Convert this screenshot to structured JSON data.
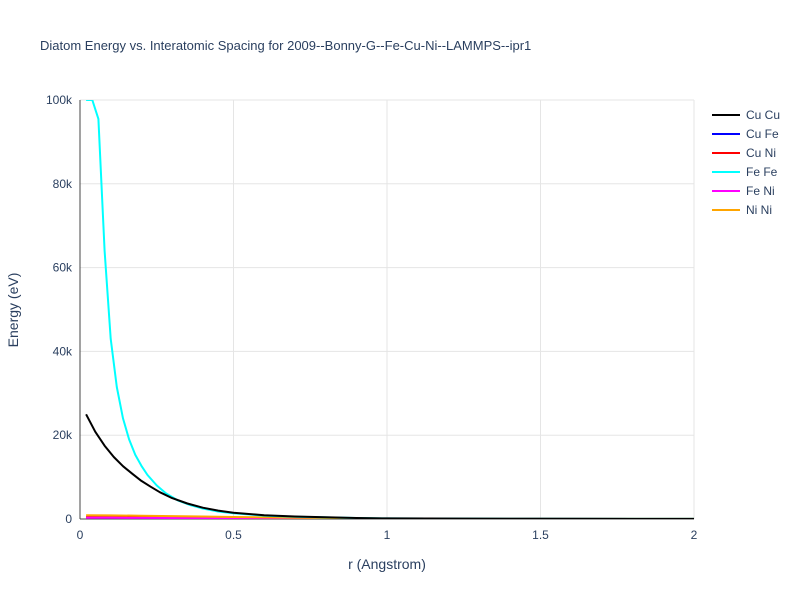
{
  "chart_data": {
    "type": "line",
    "title": "Diatom Energy vs. Interatomic Spacing for 2009--Bonny-G--Fe-Cu-Ni--LAMMPS--ipr1",
    "xlabel": "r (Angstrom)",
    "ylabel": "Energy (eV)",
    "xlim": [
      0,
      2
    ],
    "ylim": [
      0,
      100000
    ],
    "x_ticks": [
      0,
      0.5,
      1,
      1.5,
      2
    ],
    "x_tick_labels": [
      "0",
      "0.5",
      "1",
      "1.5",
      "2"
    ],
    "y_ticks": [
      0,
      20000,
      40000,
      60000,
      80000,
      100000
    ],
    "y_tick_labels": [
      "0",
      "20k",
      "40k",
      "60k",
      "80k",
      "100k"
    ],
    "grid": true,
    "legend_position": "top-right",
    "series": [
      {
        "name": "Cu Cu",
        "color": "#000000",
        "x": [
          0.02,
          0.05,
          0.08,
          0.11,
          0.14,
          0.17,
          0.2,
          0.23,
          0.26,
          0.3,
          0.35,
          0.4,
          0.45,
          0.5,
          0.6,
          0.7,
          0.8,
          0.9,
          1.0,
          1.5,
          2.0
        ],
        "y": [
          25000,
          20800,
          17500,
          14800,
          12600,
          10800,
          9100,
          7700,
          6400,
          5000,
          3700,
          2700,
          2000,
          1500,
          900,
          600,
          400,
          250,
          150,
          50,
          20
        ]
      },
      {
        "name": "Cu Fe",
        "color": "#0000ff",
        "x": [
          0.02,
          0.1,
          0.2,
          0.3,
          0.4,
          0.5,
          0.7,
          1.0,
          1.5,
          2.0
        ],
        "y": [
          400,
          380,
          340,
          290,
          240,
          190,
          120,
          60,
          25,
          10
        ]
      },
      {
        "name": "Cu Ni",
        "color": "#ff0000",
        "x": [
          0.02,
          0.1,
          0.2,
          0.3,
          0.4,
          0.5,
          0.7,
          1.0,
          1.5,
          2.0
        ],
        "y": [
          450,
          420,
          380,
          330,
          270,
          210,
          130,
          65,
          25,
          10
        ]
      },
      {
        "name": "Fe Fe",
        "color": "#00ffff",
        "x": [
          0.02,
          0.04,
          0.06,
          0.08,
          0.1,
          0.12,
          0.14,
          0.16,
          0.18,
          0.2,
          0.22,
          0.25,
          0.28,
          0.32,
          0.36,
          0.4,
          0.45,
          0.5,
          0.6,
          0.7,
          0.8,
          0.9,
          1.0,
          1.5,
          2.0
        ],
        "y": [
          100000,
          100000,
          95500,
          64000,
          43000,
          31500,
          24000,
          19000,
          15300,
          12700,
          10500,
          8000,
          6100,
          4400,
          3300,
          2500,
          1800,
          1350,
          800,
          550,
          380,
          250,
          150,
          50,
          20
        ]
      },
      {
        "name": "Fe Ni",
        "color": "#ff00ff",
        "x": [
          0.02,
          0.1,
          0.2,
          0.3,
          0.4,
          0.5,
          0.7,
          1.0,
          1.5,
          2.0
        ],
        "y": [
          300,
          290,
          270,
          240,
          200,
          160,
          100,
          50,
          20,
          8
        ]
      },
      {
        "name": "Ni Ni",
        "color": "#ffa500",
        "x": [
          0.02,
          0.1,
          0.2,
          0.3,
          0.4,
          0.5,
          0.6,
          0.7,
          0.8,
          0.9,
          1.0,
          1.5,
          2.0
        ],
        "y": [
          900,
          850,
          780,
          700,
          600,
          480,
          380,
          300,
          230,
          170,
          120,
          50,
          20
        ]
      }
    ]
  }
}
